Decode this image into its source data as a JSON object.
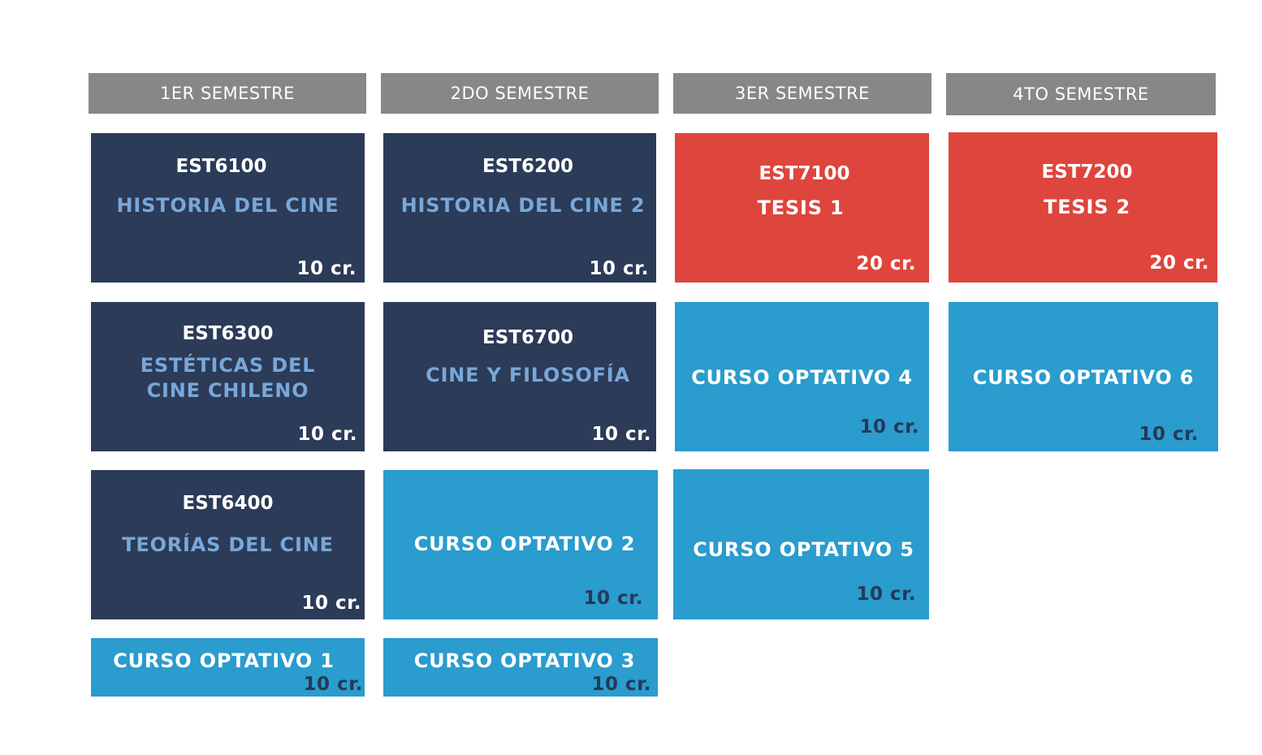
{
  "colors": {
    "header": "#878787",
    "core": "#2b3b58",
    "thesis": "#de453d",
    "elective": "#2a9ccd",
    "core_title": "#79a7d8",
    "elective_credits": "#25395a"
  },
  "semesters": [
    {
      "label": "1ER SEMESTRE"
    },
    {
      "label": "2DO SEMESTRE"
    },
    {
      "label": "3ER SEMESTRE"
    },
    {
      "label": "4TO SEMESTRE"
    }
  ],
  "courses": [
    {
      "code": "EST6100",
      "title": "HISTORIA DEL CINE",
      "credits": "10 cr."
    },
    {
      "code": "EST6300",
      "title_line1": "ESTÉTICAS DEL",
      "title_line2": "CINE CHILENO",
      "credits": "10 cr."
    },
    {
      "code": "EST6400",
      "title": "TEORÍAS DEL CINE",
      "credits": "10 cr."
    },
    {
      "title": "CURSO OPTATIVO 1",
      "credits": "10 cr."
    },
    {
      "code": "EST6200",
      "title": "HISTORIA DEL CINE 2",
      "credits": "10 cr."
    },
    {
      "code": "EST6700",
      "title": "CINE Y FILOSOFÍA",
      "credits": "10 cr."
    },
    {
      "title": "CURSO OPTATIVO 2",
      "credits": "10 cr."
    },
    {
      "title": "CURSO OPTATIVO 3",
      "credits": "10 cr."
    },
    {
      "code": "EST7100",
      "title": "TESIS 1",
      "credits": "20 cr."
    },
    {
      "title": "CURSO OPTATIVO 4",
      "credits": "10 cr."
    },
    {
      "title": "CURSO OPTATIVO 5",
      "credits": "10 cr."
    },
    {
      "code": "EST7200",
      "title": "TESIS 2",
      "credits": "20 cr."
    },
    {
      "title": "CURSO OPTATIVO 6",
      "credits": "10 cr."
    }
  ]
}
